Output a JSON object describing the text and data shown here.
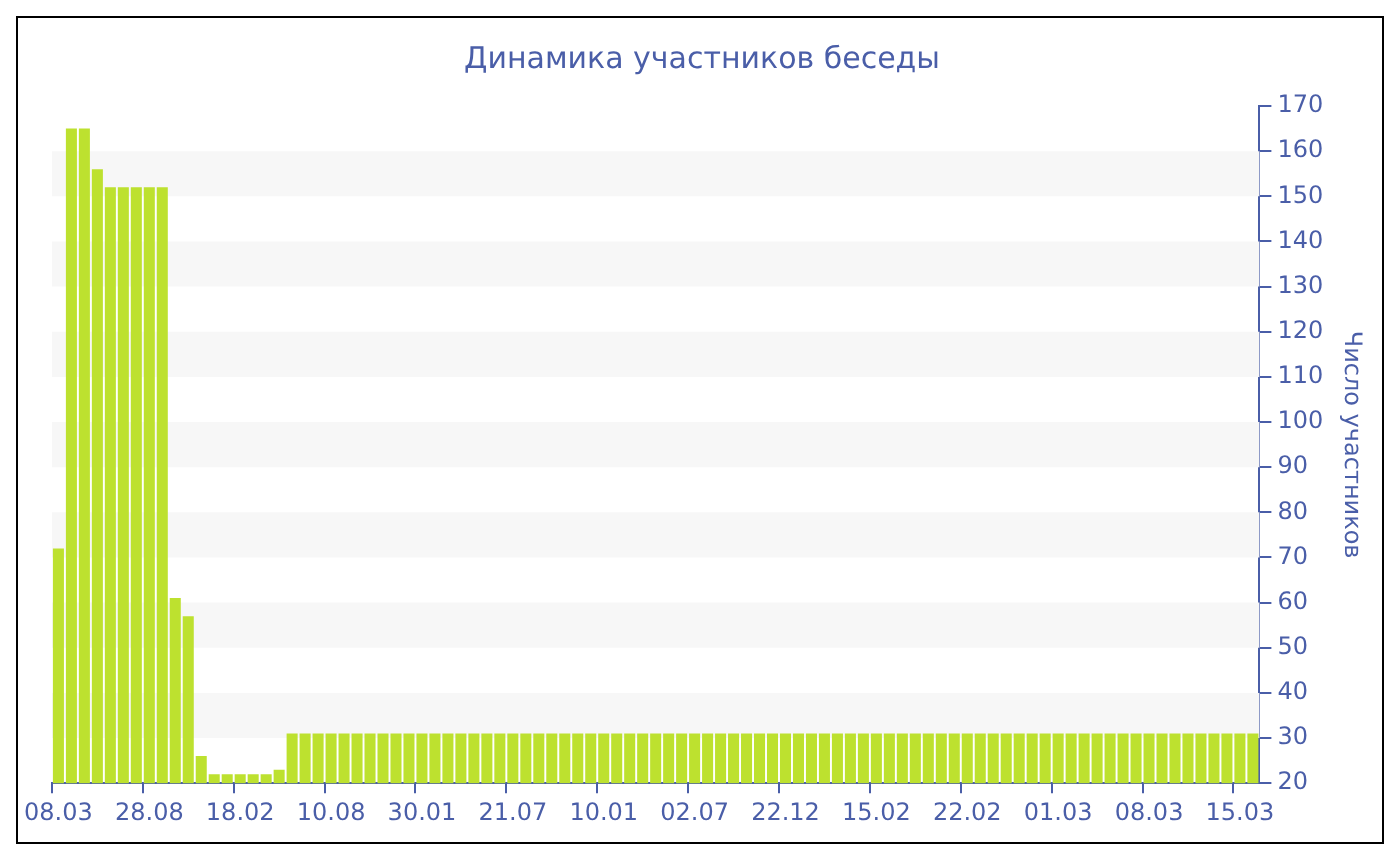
{
  "chart_data": {
    "type": "bar",
    "title": "Динамика участников беседы",
    "ylabel": "Число участников",
    "categories": [
      "08.03",
      null,
      null,
      null,
      null,
      null,
      null,
      "28.08",
      null,
      null,
      null,
      null,
      null,
      null,
      "18.02",
      null,
      null,
      null,
      null,
      null,
      null,
      "10.08",
      null,
      null,
      null,
      null,
      null,
      null,
      "30.01",
      null,
      null,
      null,
      null,
      null,
      null,
      "21.07",
      null,
      null,
      null,
      null,
      null,
      null,
      "10.01",
      null,
      null,
      null,
      null,
      null,
      null,
      "02.07",
      null,
      null,
      null,
      null,
      null,
      null,
      "22.12",
      null,
      null,
      null,
      null,
      null,
      null,
      "15.02",
      null,
      null,
      null,
      null,
      null,
      null,
      "22.02",
      null,
      null,
      null,
      null,
      null,
      null,
      "01.03",
      null,
      null,
      null,
      null,
      null,
      null,
      "08.03",
      null,
      null,
      null,
      null,
      null,
      null,
      "15.03",
      null
    ],
    "values": [
      72,
      165,
      165,
      156,
      152,
      152,
      152,
      152,
      152,
      61,
      57,
      26,
      22,
      22,
      22,
      22,
      22,
      23,
      31,
      31,
      31,
      31,
      31,
      31,
      31,
      31,
      31,
      31,
      31,
      31,
      31,
      31,
      31,
      31,
      31,
      31,
      31,
      31,
      31,
      31,
      31,
      31,
      31,
      31,
      31,
      31,
      31,
      31,
      31,
      31,
      31,
      31,
      31,
      31,
      31,
      31,
      31,
      31,
      31,
      31,
      31,
      31,
      31,
      31,
      31,
      31,
      31,
      31,
      31,
      31,
      31,
      31,
      31,
      31,
      31,
      31,
      31,
      31,
      31,
      31,
      31,
      31,
      31,
      31,
      31,
      31,
      31,
      31,
      31,
      31,
      31,
      31,
      31
    ],
    "color": "#bde12f",
    "ylim": [
      20,
      170
    ],
    "yticks": [
      20,
      30,
      40,
      50,
      60,
      70,
      80,
      90,
      100,
      110,
      120,
      130,
      140,
      150,
      160,
      170
    ]
  }
}
